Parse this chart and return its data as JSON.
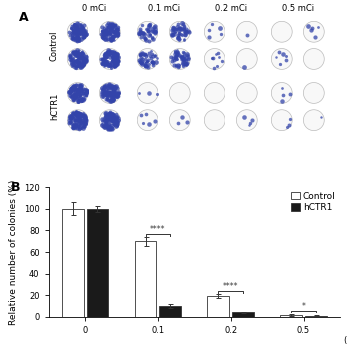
{
  "panel_A_label": "A",
  "panel_B_label": "B",
  "dose_labels_A": [
    "0 mCi",
    "0.1 mCi",
    "0.2 mCi",
    "0.5 mCi"
  ],
  "row_labels_A": [
    "Control",
    "hCTR1"
  ],
  "bar_xtick_labels": [
    "0",
    "0.1",
    "0.2",
    "0.5"
  ],
  "control_values": [
    100,
    70,
    19,
    2
  ],
  "hctr1_values": [
    100,
    10,
    4,
    1
  ],
  "control_errors": [
    6,
    4,
    2,
    1
  ],
  "hctr1_errors": [
    3,
    1.5,
    0.8,
    0.5
  ],
  "control_color": "#ffffff",
  "hctr1_color": "#1a1a1a",
  "bar_edge_color": "#333333",
  "ylabel": "Relative number of colonies (%)",
  "xlabel": "(mCi)",
  "ylim": [
    0,
    120
  ],
  "yticks": [
    0,
    20,
    40,
    60,
    80,
    100,
    120
  ],
  "legend_control": "Control",
  "legend_hctr1": "hCTR1",
  "significance_01": "****",
  "significance_02": "****",
  "significance_05": "*",
  "bar_width": 0.3,
  "colony_density_control": [
    120,
    55,
    4,
    1
  ],
  "colony_density_hctr1": [
    120,
    3,
    1,
    0
  ],
  "colony_color": "#3344aa",
  "plate_edge_color": "#bbbbbb",
  "plate_bg_color": "#f8f8f8",
  "background_color": "#ffffff",
  "panel_label_fontsize": 9,
  "tick_fontsize": 6,
  "axis_label_fontsize": 6.5,
  "legend_fontsize": 6.5
}
